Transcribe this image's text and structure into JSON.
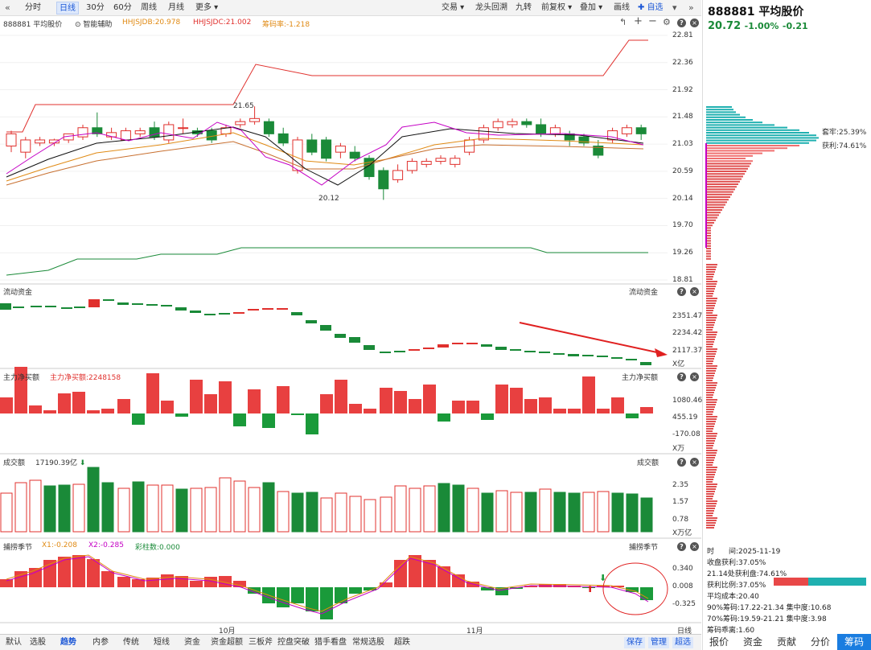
{
  "toolbar": {
    "left_buttons": [
      "分时",
      "日线",
      "30分",
      "60分",
      "周线",
      "月线",
      "更多"
    ],
    "active_index": 1,
    "right_buttons": [
      "交易",
      "龙头回溯",
      "九转",
      "前复权",
      "叠加",
      "画线",
      "自选"
    ]
  },
  "stock": {
    "code": "888881",
    "name": "平均股价",
    "price": "20.72",
    "pct": "-1.00%",
    "chg": "-0.21"
  },
  "main_legend": {
    "name": "888881 平均股价",
    "assist": "智能辅助",
    "hhjsjdb": "HHJSJDB:20.978",
    "hhjsjdc": "HHJSJDC:21.002",
    "jiachou": "筹码率:-1.218"
  },
  "price_axis": [
    "22.81",
    "22.36",
    "21.92",
    "21.48",
    "21.03",
    "20.59",
    "20.14",
    "19.70",
    "19.26",
    "18.81"
  ],
  "annotations": {
    "high": "21.65",
    "low": "20.12"
  },
  "liudong": {
    "title": "流动资金",
    "right_title": "流动资金",
    "ticks": [
      "2351.47",
      "2234.42",
      "2117.37"
    ],
    "unit": "X亿"
  },
  "zhuli": {
    "title": "主力净买额",
    "value": "主力净买额:2248158",
    "right_title": "主力净买额",
    "ticks": [
      "1080.46",
      "455.19",
      "-170.08"
    ],
    "unit": "X万"
  },
  "volume": {
    "title": "成交额",
    "value": "17190.39亿",
    "right_title": "成交额",
    "ticks": [
      "2.35",
      "1.57",
      "0.78"
    ],
    "unit": "X万亿"
  },
  "season": {
    "title": "捕捞季节",
    "x1": "X1:-0.208",
    "x2": "X2:-0.285",
    "bars": "彩柱数:0.000",
    "right_title": "捕捞季节",
    "ticks": [
      "0.340",
      "0.008",
      "-0.325"
    ]
  },
  "months": [
    "10月",
    "11月"
  ],
  "period_label": "日线",
  "bottom_tabs": [
    "默认",
    "选股",
    "趋势",
    "内参",
    "传统",
    "短线",
    "资金",
    "资金超额",
    "三板斧",
    "控盘突破",
    "猎手看盘",
    "常规选股",
    "超跌"
  ],
  "bottom_active": 2,
  "bottom_right": [
    "保存",
    "管理",
    "超选"
  ],
  "chip": {
    "taolao": "套牢:25.39%",
    "huoli": "获利:74.61%",
    "lines": [
      "时　　间:2025-11-19",
      "收盘获利:37.05%",
      "21.14处获利盘:74.61%",
      "获利比例:37.05%",
      "平均成本:20.40",
      "90%筹码:17.22-21.34  集中度:10.68",
      "70%筹码:19.59-21.21  集中度:3.98",
      "筹码乖离:1.60"
    ]
  },
  "right_tabs": [
    "报价",
    "资金",
    "贡献",
    "分价",
    "筹码"
  ],
  "right_active": 4,
  "colors": {
    "up": "#e0302d",
    "down": "#1a8a38",
    "accent": "#1a7de0"
  }
}
